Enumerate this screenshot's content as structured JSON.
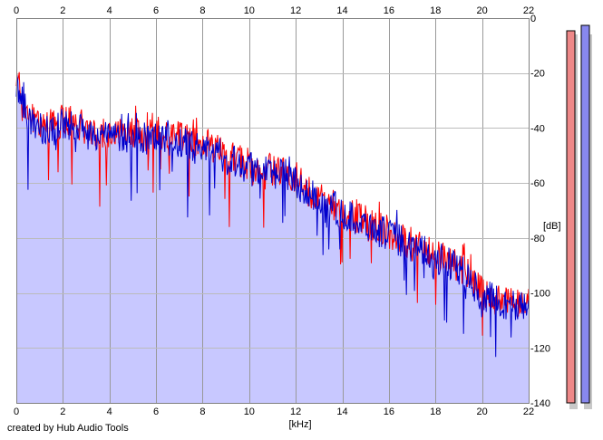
{
  "credit": "created by Hub Audio Tools",
  "chart_data": {
    "type": "line",
    "xlabel": "[kHz]",
    "ylabel": "[dB]",
    "xlim": [
      0,
      22
    ],
    "ylim": [
      -140,
      0
    ],
    "x_ticks": [
      0,
      2,
      4,
      6,
      8,
      10,
      12,
      14,
      16,
      18,
      20,
      22
    ],
    "y_ticks": [
      0,
      -20,
      -40,
      -60,
      -80,
      -100,
      -120,
      -140
    ],
    "x_tick_labels": [
      "0",
      "2",
      "4",
      "6",
      "8",
      "10",
      "12",
      "14",
      "16",
      "18",
      "20",
      "22"
    ],
    "y_tick_labels": [
      "0",
      "-20",
      "-40",
      "-60",
      "-80",
      "-100",
      "-120",
      "-140"
    ],
    "grid": true,
    "fill_color": "#c8c8ff",
    "series": [
      {
        "color": "#ff0000",
        "x": [
          0,
          0.5,
          1,
          1.5,
          2,
          2.5,
          3,
          3.5,
          4,
          4.5,
          5,
          5.5,
          6,
          6.5,
          7,
          7.5,
          8,
          8.5,
          9,
          9.5,
          10,
          10.5,
          11,
          11.5,
          12,
          12.5,
          13,
          13.5,
          14,
          14.5,
          15,
          15.5,
          16,
          16.5,
          17,
          17.5,
          18,
          18.5,
          19,
          19.5,
          20,
          20.5,
          21,
          21.5,
          22
        ],
        "values": [
          -22,
          -35,
          -38,
          -40,
          -37,
          -38,
          -40,
          -41,
          -42,
          -42,
          -42,
          -43,
          -41,
          -44,
          -43,
          -45,
          -45,
          -47,
          -50,
          -52,
          -52,
          -55,
          -55,
          -56,
          -58,
          -63,
          -66,
          -67,
          -70,
          -72,
          -74,
          -76,
          -78,
          -80,
          -83,
          -84,
          -86,
          -88,
          -90,
          -94,
          -100,
          -102,
          -103,
          -104,
          -104
        ]
      },
      {
        "color": "#0000cc",
        "x": [
          0,
          0.5,
          1,
          1.5,
          2,
          2.5,
          3,
          3.5,
          4,
          4.5,
          5,
          5.5,
          6,
          6.5,
          7,
          7.5,
          8,
          8.5,
          9,
          9.5,
          10,
          10.5,
          11,
          11.5,
          12,
          12.5,
          13,
          13.5,
          14,
          14.5,
          15,
          15.5,
          16,
          16.5,
          17,
          17.5,
          18,
          18.5,
          19,
          19.5,
          20,
          20.5,
          21,
          21.5,
          22
        ],
        "values": [
          -24,
          -36,
          -40,
          -42,
          -39,
          -39,
          -42,
          -42,
          -43,
          -43,
          -43,
          -44,
          -42,
          -45,
          -45,
          -47,
          -47,
          -48,
          -51,
          -52,
          -53,
          -55,
          -56,
          -57,
          -59,
          -64,
          -66,
          -68,
          -71,
          -73,
          -75,
          -77,
          -79,
          -81,
          -84,
          -85,
          -87,
          -89,
          -91,
          -96,
          -101,
          -102,
          -104,
          -105,
          -105
        ]
      }
    ],
    "level_meters": [
      {
        "color": "#ee8888"
      },
      {
        "color": "#8888ee"
      }
    ]
  }
}
